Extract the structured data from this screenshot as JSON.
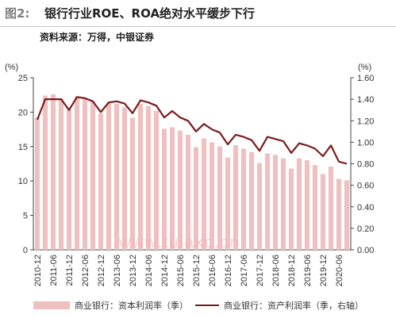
{
  "header": {
    "figure_label": "图2:",
    "title": "银行行业ROE、ROA绝对水平缓步下行",
    "source": "资料来源：万得，中银证券"
  },
  "watermark": "www.tuiaxc.cn",
  "colors": {
    "bar": "#efc0c0",
    "line": "#7a1b1b",
    "axis": "#444444",
    "title_grey": "#808080"
  },
  "chart_data": {
    "type": "bar",
    "title": "银行行业ROE、ROA绝对水平缓步下行",
    "x_tick_labels": [
      "2010-12",
      "2011-06",
      "2011-12",
      "2012-06",
      "2012-12",
      "2013-06",
      "2013-12",
      "2014-06",
      "2014-12",
      "2015-06",
      "2015-12",
      "2016-06",
      "2016-12",
      "2017-06",
      "2017-12",
      "2018-06",
      "2018-12",
      "2019-06",
      "2019-12",
      "2020-06"
    ],
    "categories": [
      "2010Q4",
      "2011Q1",
      "2011Q2",
      "2011Q3",
      "2011Q4",
      "2012Q1",
      "2012Q2",
      "2012Q3",
      "2012Q4",
      "2013Q1",
      "2013Q2",
      "2013Q3",
      "2013Q4",
      "2014Q1",
      "2014Q2",
      "2014Q3",
      "2014Q4",
      "2015Q1",
      "2015Q2",
      "2015Q3",
      "2015Q4",
      "2016Q1",
      "2016Q2",
      "2016Q3",
      "2016Q4",
      "2017Q1",
      "2017Q2",
      "2017Q3",
      "2017Q4",
      "2018Q1",
      "2018Q2",
      "2018Q3",
      "2018Q4",
      "2019Q1",
      "2019Q2",
      "2019Q3",
      "2019Q4",
      "2020Q1",
      "2020Q2",
      "2020Q3"
    ],
    "left_axis": {
      "unit": "(%)",
      "ylim": [
        0,
        25
      ],
      "ticks": [
        0,
        5,
        10,
        15,
        20,
        25
      ]
    },
    "right_axis": {
      "unit": "(%)",
      "ylim": [
        0,
        1.6
      ],
      "ticks": [
        "0.00",
        "0.20",
        "0.40",
        "0.60",
        "0.80",
        "1.00",
        "1.20",
        "1.40",
        "1.60"
      ]
    },
    "series": [
      {
        "name": "商业银行：资本利润率（季）",
        "type": "bar",
        "axis": "left",
        "values": [
          19.2,
          22.4,
          22.6,
          22.0,
          20.4,
          22.3,
          22.0,
          21.5,
          19.8,
          21.4,
          21.2,
          20.7,
          19.2,
          21.2,
          20.9,
          20.2,
          17.6,
          17.8,
          17.3,
          16.7,
          14.9,
          16.2,
          15.6,
          15.0,
          13.4,
          15.2,
          14.7,
          14.2,
          12.6,
          14.0,
          13.8,
          13.3,
          11.8,
          13.3,
          13.0,
          12.3,
          11.0,
          12.1,
          10.3,
          10.1
        ]
      },
      {
        "name": "商业银行：资产利润率（季，右轴）",
        "type": "line",
        "axis": "right",
        "values": [
          1.21,
          1.4,
          1.4,
          1.4,
          1.3,
          1.42,
          1.41,
          1.38,
          1.28,
          1.37,
          1.38,
          1.36,
          1.27,
          1.39,
          1.37,
          1.34,
          1.23,
          1.29,
          1.23,
          1.2,
          1.1,
          1.17,
          1.12,
          1.09,
          0.98,
          1.07,
          1.05,
          1.02,
          0.92,
          1.05,
          1.03,
          1.01,
          0.9,
          0.99,
          0.97,
          0.94,
          0.87,
          0.97,
          0.82,
          0.8
        ]
      }
    ],
    "grid": false,
    "legend_position": "bottom"
  }
}
